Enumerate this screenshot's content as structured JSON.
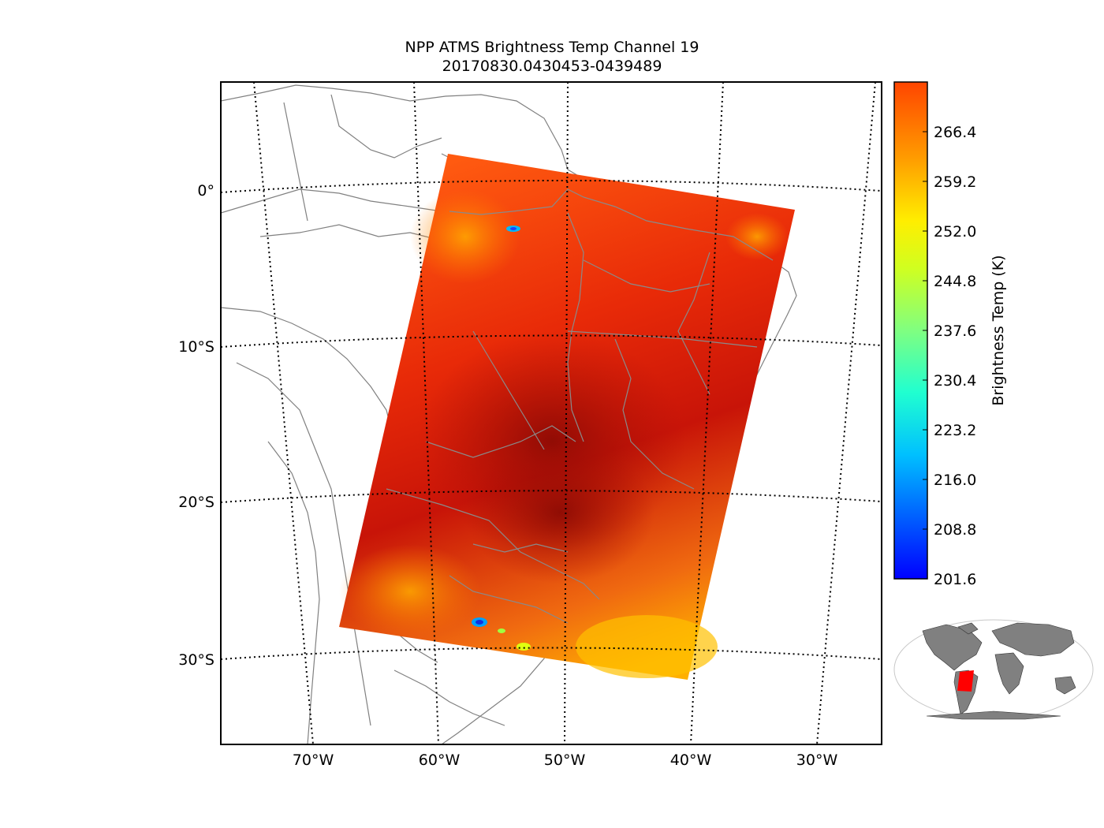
{
  "title": {
    "line1": "NPP ATMS Brightness Temp Channel 19",
    "line2": "20170830.0430453-0439489"
  },
  "map": {
    "latitude_labels": [
      "0°",
      "10°S",
      "20°S",
      "30°S"
    ],
    "longitude_labels": [
      "70°W",
      "60°W",
      "50°W",
      "40°W",
      "30°W"
    ],
    "land_color_inset": "#808080",
    "coastline_color": "#808080",
    "swath_inset_color": "#ff0000"
  },
  "colorbar": {
    "label": "Brightness Temp (K)",
    "ticks": [
      "201.6",
      "208.8",
      "216.0",
      "223.2",
      "230.4",
      "237.6",
      "244.8",
      "252.0",
      "259.2",
      "266.4"
    ],
    "min": 201.6,
    "max": 273.6,
    "colormap": "jet"
  }
}
